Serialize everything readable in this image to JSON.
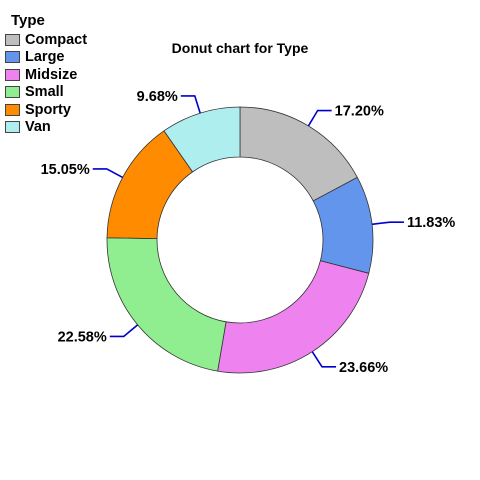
{
  "chart_data": {
    "type": "pie",
    "variant": "donut",
    "title": "Donut chart for Type",
    "legend_title": "Type",
    "legend_position": "top-left",
    "categories": [
      "Compact",
      "Large",
      "Midsize",
      "Small",
      "Sporty",
      "Van"
    ],
    "values": [
      17.2,
      11.83,
      23.66,
      22.58,
      15.05,
      9.68
    ],
    "labels": [
      "17.20%",
      "11.83%",
      "23.66%",
      "22.58%",
      "15.05%",
      "9.68%"
    ],
    "colors": [
      "#bebebe",
      "#6495ed",
      "#ee82ee",
      "#90ee90",
      "#ff8c00",
      "#afeeee"
    ],
    "label_line_color": "#0000cd"
  }
}
